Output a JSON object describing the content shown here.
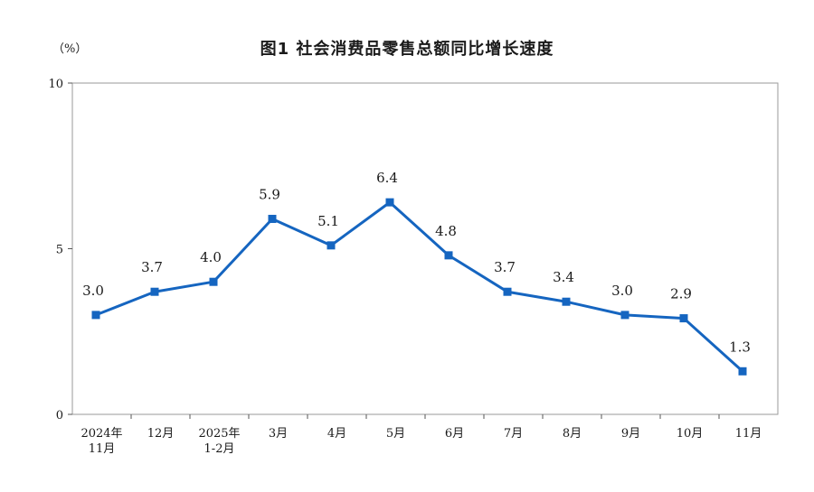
{
  "chart_data": {
    "type": "line",
    "title": "图1  社会消费品零售总额同比增长速度",
    "ylabel": "（%）",
    "ylim": [
      0,
      10
    ],
    "yticks": [
      "0",
      "5",
      "10"
    ],
    "categories": [
      [
        "2024年",
        "11月"
      ],
      [
        "12月"
      ],
      [
        "2025年",
        "1-2月"
      ],
      [
        "3月"
      ],
      [
        "4月"
      ],
      [
        "5月"
      ],
      [
        "6月"
      ],
      [
        "7月"
      ],
      [
        "8月"
      ],
      [
        "9月"
      ],
      [
        "10月"
      ],
      [
        "11月"
      ]
    ],
    "values": [
      3.0,
      3.7,
      4.0,
      5.9,
      5.1,
      6.4,
      4.8,
      3.7,
      3.4,
      3.0,
      2.9,
      1.3
    ],
    "value_labels": [
      "3.0",
      "3.7",
      "4.0",
      "5.9",
      "5.1",
      "6.4",
      "4.8",
      "3.7",
      "3.4",
      "3.0",
      "2.9",
      "1.3"
    ],
    "grid": false,
    "line_color": "#1565c0"
  }
}
